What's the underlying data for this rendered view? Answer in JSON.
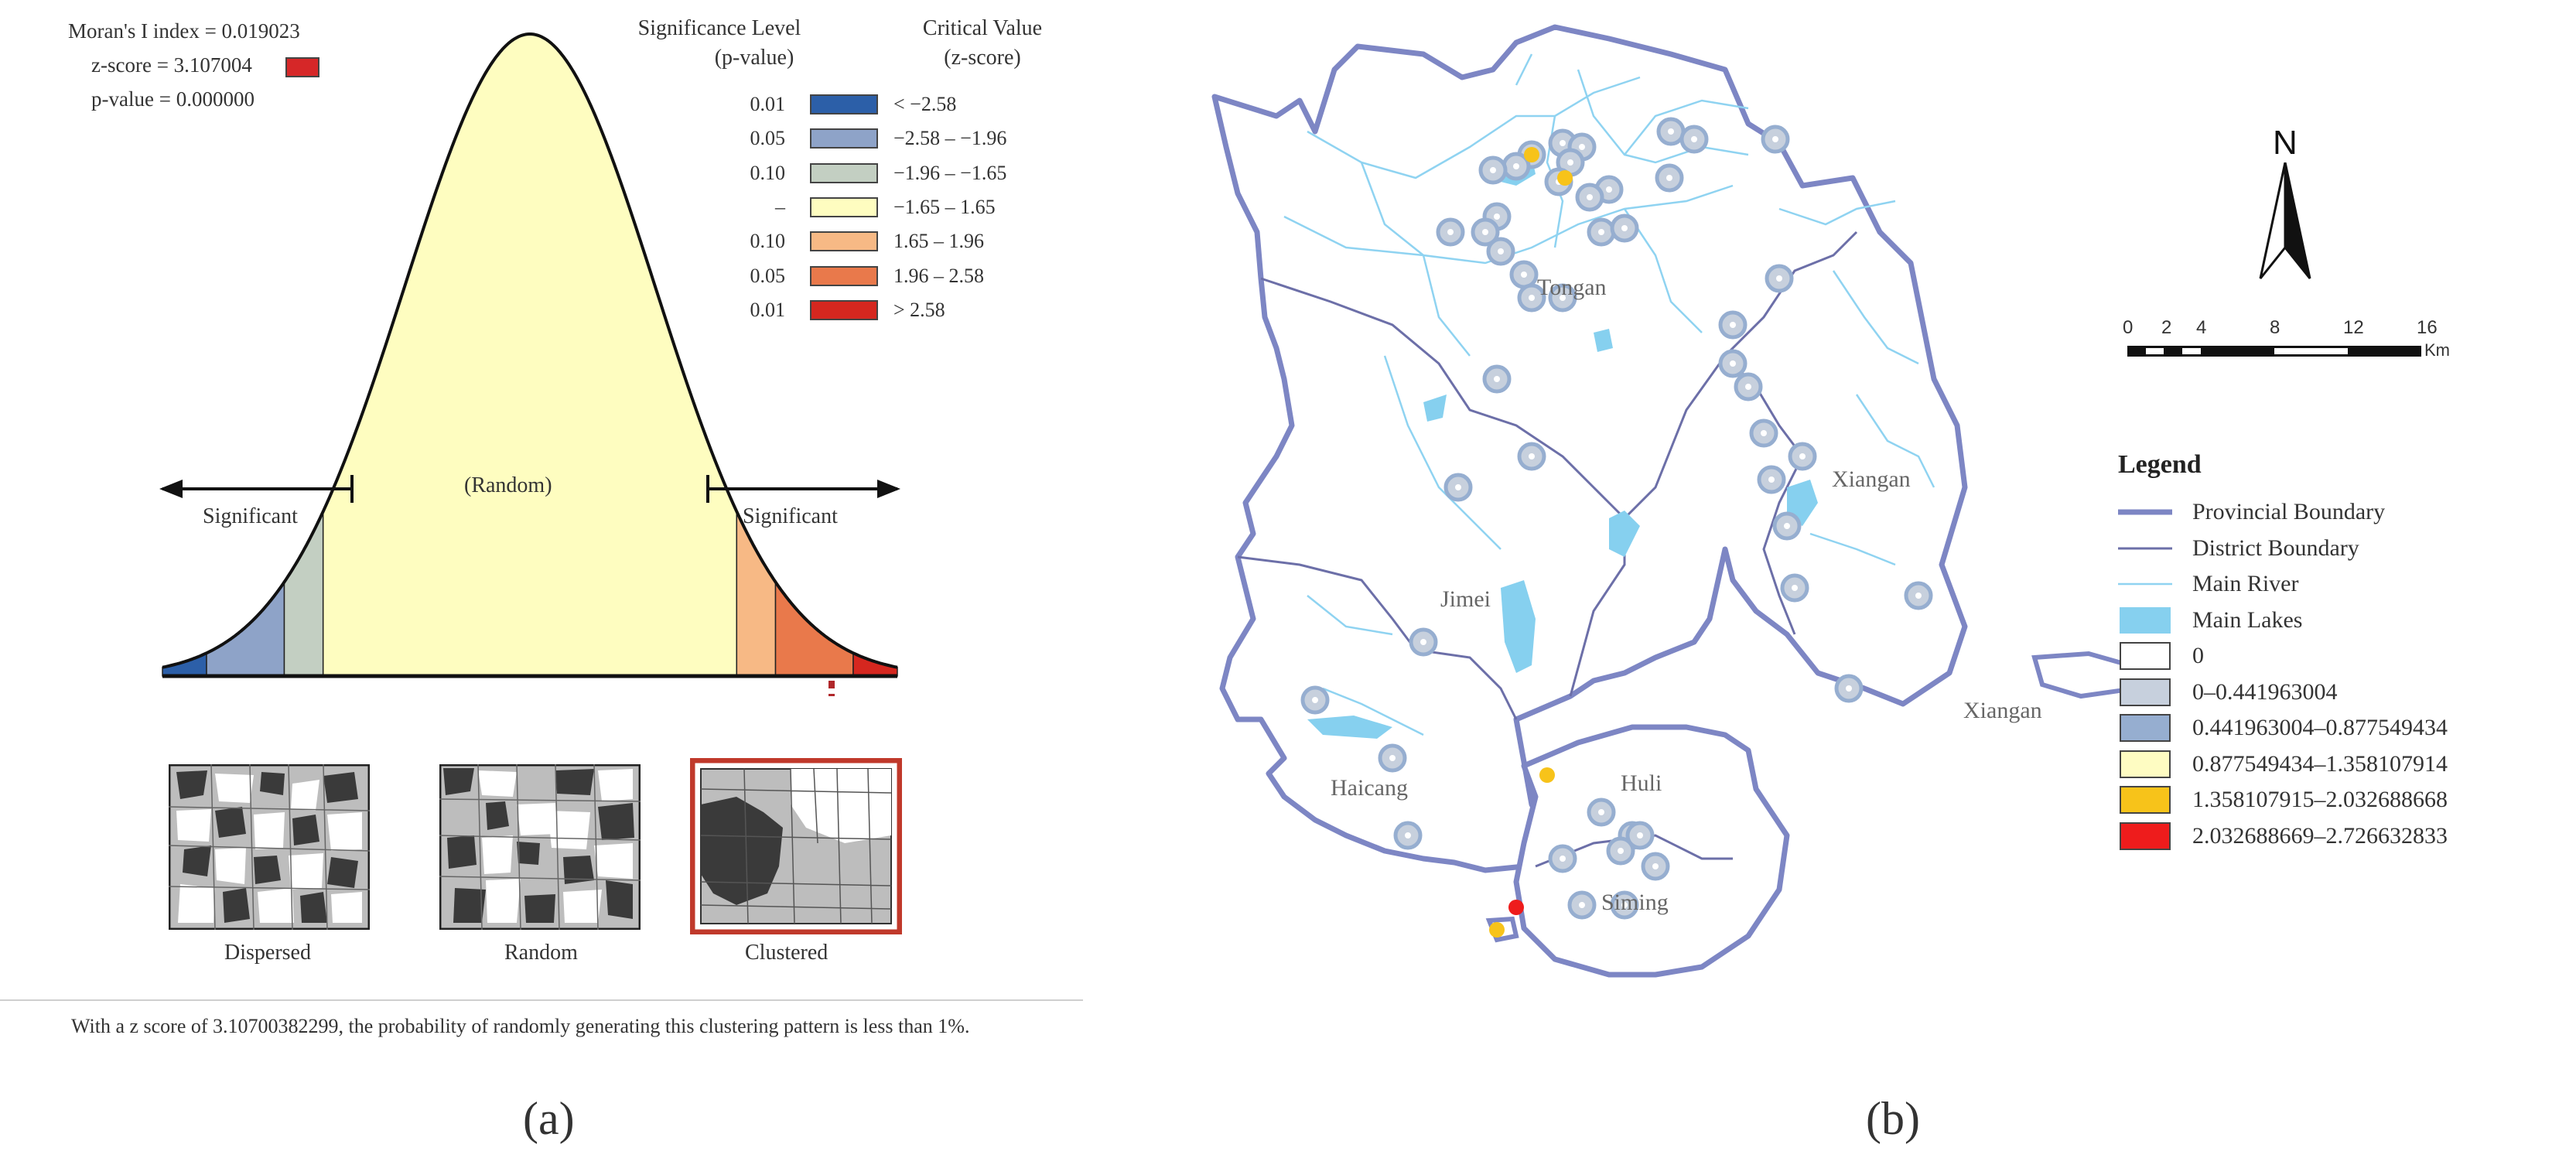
{
  "panel_a": {
    "label": "(a)",
    "stats": {
      "morans_i": "Moran's I index = 0.019023",
      "z_score": "z-score = 3.107004",
      "p_value": "p-value = 0.000000",
      "z_marker_color": "#d62728"
    },
    "legend": {
      "col1_title_1": "Significance Level",
      "col1_title_2": "(p-value)",
      "col2_title_1": "Critical Value",
      "col2_title_2": "(z-score)",
      "rows": [
        {
          "p": "0.01",
          "z": "< −2.58",
          "color": "#2c5fa8"
        },
        {
          "p": "0.05",
          "z": "−2.58 – −1.96",
          "color": "#8ea3c8"
        },
        {
          "p": "0.10",
          "z": "−1.96 – −1.65",
          "color": "#c3cfc2"
        },
        {
          "p": "–",
          "z": "−1.65 – 1.65",
          "color": "#fefdc0"
        },
        {
          "p": "0.10",
          "z": "1.65 – 1.96",
          "color": "#f7b985"
        },
        {
          "p": "0.05",
          "z": "1.96 – 2.58",
          "color": "#e9794b"
        },
        {
          "p": "0.01",
          "z": "> 2.58",
          "color": "#d5271f"
        }
      ]
    },
    "curve": {
      "random_label": "(Random)",
      "significant_left": "Significant",
      "significant_right": "Significant"
    },
    "patterns": {
      "dispersed": "Dispersed",
      "random": "Random",
      "clustered": "Clustered"
    },
    "caption": "With a z score of 3.10700382299, the probability of randomly generating this clustering pattern is less than 1%."
  },
  "panel_b": {
    "label": "(b)",
    "north": "N",
    "scale": {
      "ticks": [
        "0",
        "2",
        "4",
        "8",
        "12",
        "16"
      ],
      "unit": "Km"
    },
    "districts": {
      "tongan": "Tongan",
      "xiangan": "Xiangan",
      "xiangan2": "Xiangan",
      "jimei": "Jimei",
      "haicang": "Haicang",
      "huli": "Huli",
      "siming": "Siming"
    },
    "legend": {
      "title": "Legend",
      "items": [
        {
          "label": "Provincial Boundary",
          "kind": "thick-line",
          "color": "#7d86c4"
        },
        {
          "label": "District Boundary",
          "kind": "thin-line",
          "color": "#6c6fa8"
        },
        {
          "label": "Main River",
          "kind": "river",
          "color": "#8fd3f1"
        },
        {
          "label": "Main Lakes",
          "kind": "lake",
          "color": "#86d0ef"
        },
        {
          "label": "0",
          "kind": "box",
          "color": "#ffffff"
        },
        {
          "label": "0–0.441963004",
          "kind": "box",
          "color": "#c7d0dd"
        },
        {
          "label": "0.441963004–0.877549434",
          "kind": "box",
          "color": "#96aed0"
        },
        {
          "label": "0.877549434–1.358107914",
          "kind": "box",
          "color": "#fefcc2"
        },
        {
          "label": "1.358107915–2.032688668",
          "kind": "box",
          "color": "#f7c31a"
        },
        {
          "label": "2.032688669–2.726632833",
          "kind": "box",
          "color": "#ee1c1c"
        }
      ]
    }
  }
}
